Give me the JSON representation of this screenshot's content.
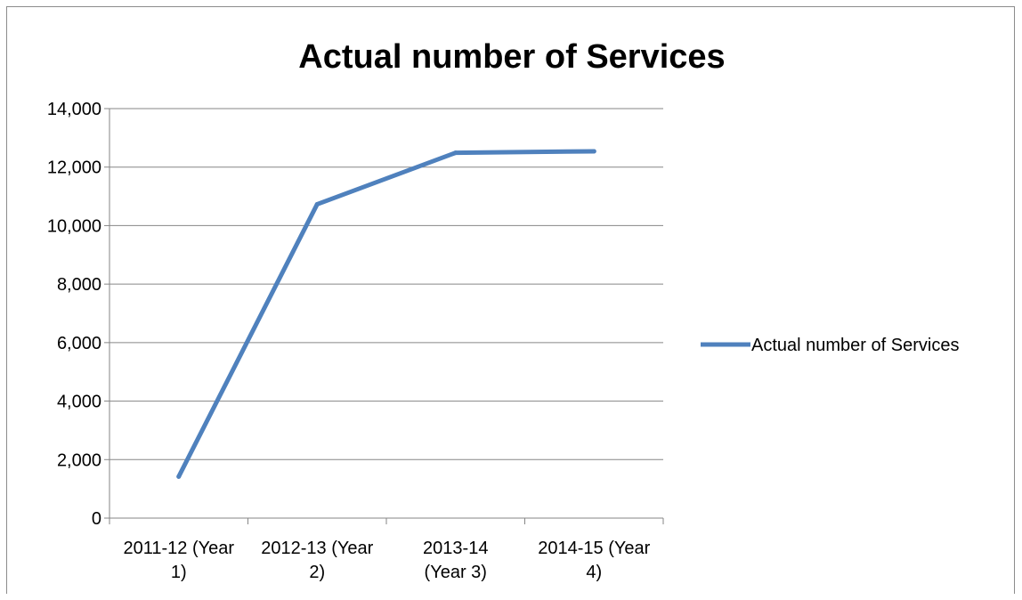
{
  "chart_data": {
    "type": "line",
    "title": "Actual number of Services",
    "categories": [
      "2011-12 (Year 1)",
      "2012-13 (Year 2)",
      "2013-14 (Year 3)",
      "2014-15 (Year 4)"
    ],
    "category_lines": [
      [
        "2011-12 (Year",
        "1)"
      ],
      [
        "2012-13 (Year",
        "2)"
      ],
      [
        "2013-14",
        "(Year 3)"
      ],
      [
        "2014-15 (Year",
        "4)"
      ]
    ],
    "series": [
      {
        "name": "Actual number of Services",
        "values": [
          1420,
          10730,
          12490,
          12540
        ],
        "color": "#4f81bd"
      }
    ],
    "ylim": [
      0,
      14000
    ],
    "yticks": [
      0,
      2000,
      4000,
      6000,
      8000,
      10000,
      12000,
      14000
    ],
    "ytick_labels": [
      "0",
      "2,000",
      "4,000",
      "6,000",
      "8,000",
      "10,000",
      "12,000",
      "14,000"
    ],
    "grid": true,
    "legend": "right",
    "xlabel": "",
    "ylabel": ""
  }
}
